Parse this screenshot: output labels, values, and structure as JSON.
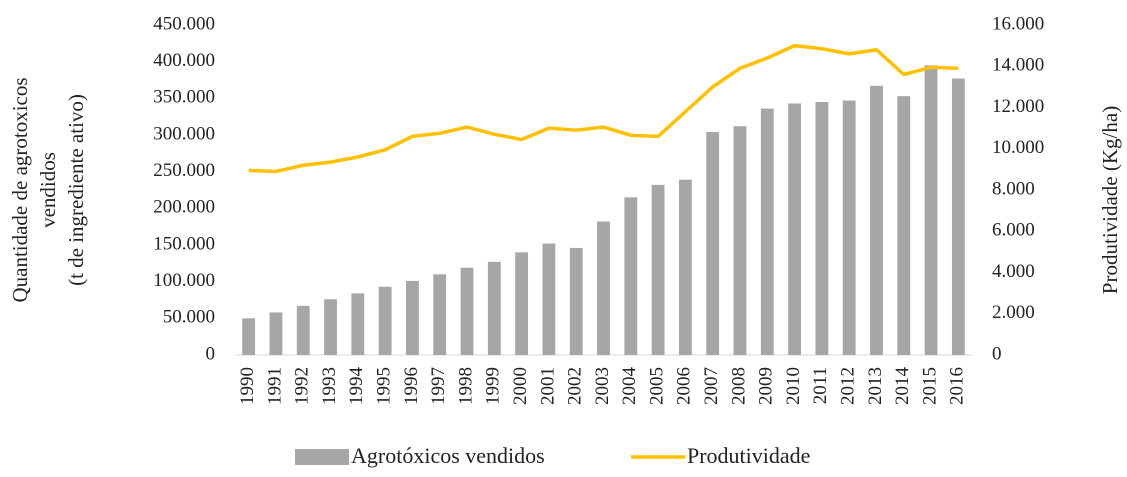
{
  "chart_data": {
    "type": "bar_line",
    "y_label": [
      "Quantidade de agrotoxicos",
      "vendidos",
      "(t de ingrediente ativo)"
    ],
    "y2_label": "Produtividade (Kg/ha)",
    "categories": [
      "1990",
      "1991",
      "1992",
      "1993",
      "1994",
      "1995",
      "1996",
      "1997",
      "1998",
      "1999",
      "2000",
      "2001",
      "2002",
      "2003",
      "2004",
      "2005",
      "2006",
      "2007",
      "2008",
      "2009",
      "2010",
      "2011",
      "2012",
      "2013",
      "2014",
      "2015",
      "2016"
    ],
    "series": [
      {
        "name": "Agrotóxicos vendidos",
        "type": "bar",
        "color": "#a6a6a6",
        "values": [
          50000,
          58000,
          67000,
          76000,
          84000,
          93000,
          101000,
          110000,
          119000,
          127000,
          140000,
          152000,
          146000,
          182000,
          215000,
          232000,
          239000,
          304000,
          312000,
          336000,
          343000,
          345000,
          347000,
          367000,
          353000,
          395000,
          377000
        ]
      },
      {
        "name": "Produtividade",
        "type": "line",
        "axis": "y2",
        "color": "#ffc000",
        "values": [
          8950,
          8900,
          9200,
          9350,
          9600,
          9950,
          10600,
          10750,
          11050,
          10700,
          10450,
          11000,
          10900,
          11050,
          10650,
          10600,
          11800,
          13000,
          13900,
          14400,
          15000,
          14850,
          14600,
          14800,
          13600,
          13950,
          13900
        ]
      }
    ],
    "ylim": [
      0,
      450000
    ],
    "yticks": [
      0,
      {
        "value": 50000,
        "label": "50.000"
      },
      {
        "value": 100000,
        "label": "100.000"
      },
      {
        "value": 150000,
        "label": "150.000"
      },
      {
        "value": 200000,
        "label": "200.000"
      },
      {
        "value": 250000,
        "label": "250.000"
      },
      {
        "value": 300000,
        "label": "300.000"
      },
      {
        "value": 350000,
        "label": "350.000"
      },
      {
        "value": 400000,
        "label": "400.000"
      },
      {
        "value": 450000,
        "label": "450.000"
      }
    ],
    "y2lim": [
      0,
      16000
    ],
    "y2ticks": [
      0,
      {
        "value": 2000,
        "label": "2.000"
      },
      {
        "value": 4000,
        "label": "4.000"
      },
      {
        "value": 6000,
        "label": "6.000"
      },
      {
        "value": 8000,
        "label": "8.000"
      },
      {
        "value": 10000,
        "label": "10.000"
      },
      {
        "value": 12000,
        "label": "12.000"
      },
      {
        "value": 14000,
        "label": "14.000"
      },
      {
        "value": 16000,
        "label": "16.000"
      }
    ],
    "legend": "bottom"
  }
}
